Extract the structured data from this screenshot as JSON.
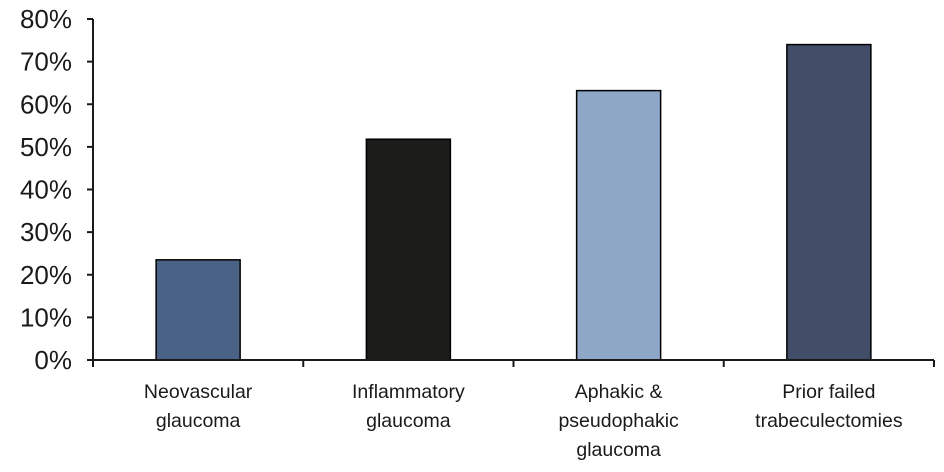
{
  "chart_data": {
    "type": "bar",
    "title": "",
    "xlabel": "",
    "ylabel": "",
    "categories": [
      [
        "Neovascular",
        "glaucoma"
      ],
      [
        "Inflammatory",
        "glaucoma"
      ],
      [
        "Aphakic &",
        "pseudophakic",
        "glaucoma"
      ],
      [
        "Prior failed",
        "trabeculectomies"
      ]
    ],
    "values": [
      23.5,
      51.8,
      63.2,
      74.0
    ],
    "colors": [
      "#4a6285",
      "#1c1c1a",
      "#8ea7c6",
      "#424d67"
    ],
    "ylim": [
      0,
      80
    ],
    "yticks": [
      "0%",
      "10%",
      "20%",
      "30%",
      "40%",
      "50%",
      "60%",
      "70%",
      "80%"
    ],
    "grid": false,
    "legend": "none"
  }
}
